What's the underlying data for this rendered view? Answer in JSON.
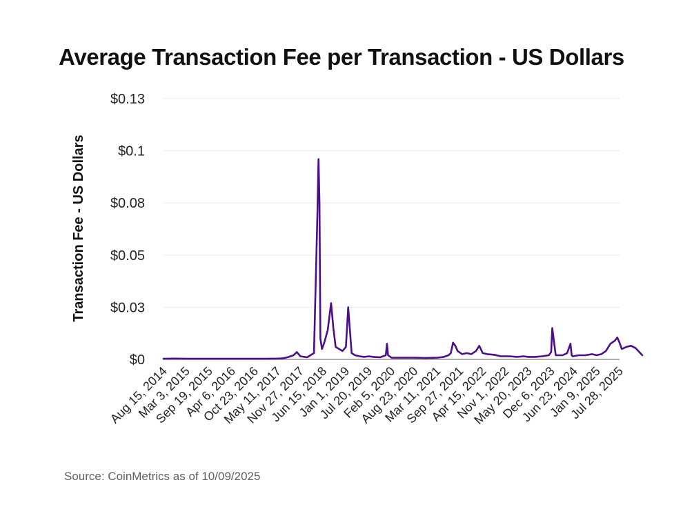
{
  "chart_data": {
    "type": "line",
    "title": "Average Transaction Fee per Transaction - US Dollars",
    "xlabel": "",
    "ylabel": "Transaction Fee - US Dollars",
    "source": "Source: CoinMetrics as of 10/09/2025",
    "ylim": [
      0,
      0.125
    ],
    "y_ticks": [
      {
        "value": 0,
        "label": "$0"
      },
      {
        "value": 0.025,
        "label": "$0.03"
      },
      {
        "value": 0.05,
        "label": "$0.05"
      },
      {
        "value": 0.075,
        "label": "$0.08"
      },
      {
        "value": 0.1,
        "label": "$0.1"
      },
      {
        "value": 0.125,
        "label": "$0.13"
      }
    ],
    "x_ticks": [
      "Aug 15, 2014",
      "Mar 3, 2015",
      "Sep 19, 2015",
      "Apr 6, 2016",
      "Oct 23, 2016",
      "May 11, 2017",
      "Nov 27, 2017",
      "Jun 15, 2018",
      "Jan 1, 2019",
      "Jul 20, 2019",
      "Feb 5, 2020",
      "Aug 23, 2020",
      "Mar 11, 2021",
      "Sep 27, 2021",
      "Apr 15, 2022",
      "Nov 1, 2022",
      "May 20, 2023",
      "Dec 6, 2023",
      "Jun 23, 2024",
      "Jan 9, 2025",
      "Jul 28, 2025"
    ],
    "series": [
      {
        "name": "Average Transaction Fee",
        "color": "#4b0f8c",
        "x": [
          0,
          0.5,
          1,
          1.5,
          2,
          2.5,
          3,
          3.5,
          4,
          4.5,
          5,
          5.2,
          5.35,
          5.5,
          5.7,
          5.85,
          6,
          6.3,
          6.6,
          6.75,
          6.8,
          6.84,
          6.88,
          6.95,
          7.05,
          7.2,
          7.35,
          7.45,
          7.55,
          7.7,
          7.85,
          8.0,
          8.1,
          8.25,
          8.4,
          8.6,
          8.8,
          9.0,
          9.2,
          9.5,
          9.75,
          9.8,
          9.85,
          10.0,
          10.5,
          11,
          11.5,
          12,
          12.3,
          12.5,
          12.6,
          12.7,
          12.8,
          12.9,
          13.1,
          13.3,
          13.5,
          13.7,
          13.85,
          14.0,
          14.2,
          14.5,
          14.8,
          15.0,
          15.2,
          15.5,
          15.8,
          16.0,
          16.3,
          16.6,
          16.9,
          17.0,
          17.05,
          17.2,
          17.5,
          17.7,
          17.85,
          17.9,
          17.95,
          18.2,
          18.5,
          18.8,
          19.0,
          19.2,
          19.4,
          19.6,
          19.8,
          19.9,
          20.0,
          20.1,
          20.3,
          20.5,
          20.7,
          21.0
        ],
        "values": [
          0.0003,
          0.0004,
          0.0003,
          0.0003,
          0.0003,
          0.0003,
          0.0003,
          0.0003,
          0.0003,
          0.0003,
          0.0004,
          0.0005,
          0.0008,
          0.0012,
          0.002,
          0.0035,
          0.0015,
          0.001,
          0.003,
          0.07,
          0.096,
          0.075,
          0.01,
          0.005,
          0.008,
          0.014,
          0.027,
          0.015,
          0.006,
          0.005,
          0.004,
          0.006,
          0.025,
          0.003,
          0.002,
          0.0015,
          0.0012,
          0.0015,
          0.0012,
          0.001,
          0.002,
          0.0075,
          0.002,
          0.0008,
          0.0008,
          0.0008,
          0.0007,
          0.0008,
          0.0012,
          0.002,
          0.003,
          0.008,
          0.0065,
          0.004,
          0.0025,
          0.003,
          0.0025,
          0.004,
          0.0065,
          0.003,
          0.0025,
          0.0022,
          0.0015,
          0.0015,
          0.0015,
          0.0012,
          0.0015,
          0.0012,
          0.0012,
          0.0015,
          0.002,
          0.0035,
          0.015,
          0.002,
          0.002,
          0.003,
          0.0075,
          0.002,
          0.0015,
          0.002,
          0.002,
          0.0025,
          0.002,
          0.0025,
          0.004,
          0.0075,
          0.009,
          0.0105,
          0.008,
          0.005,
          0.006,
          0.0065,
          0.0055,
          0.002
        ]
      }
    ]
  }
}
